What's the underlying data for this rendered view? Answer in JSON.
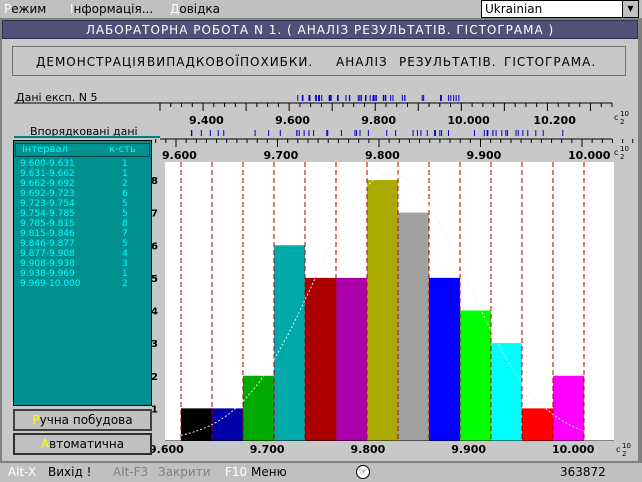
{
  "menubar": {
    "items": [
      {
        "hot": "Р",
        "rest": "ежим"
      },
      {
        "hot": "І",
        "rest": "нформація..."
      },
      {
        "hot": "Д",
        "rest": "овідка"
      }
    ],
    "language": "Ukrainian"
  },
  "title": "ЛАБОРАТОРНА РОБОТА N 1. ( АНАЛІЗ РЕЗУЛЬТАТІВ. ГІСТОГРАМА )",
  "toolbar": {
    "items": [
      "ДЕМОНСТРАЦІЯ",
      "ВИПАДКОВОЇ",
      "ПОХИБКИ.",
      "АНАЛІЗ",
      "РЕЗУЛЬТАТІВ.",
      "ГІСТОГРАМА."
    ]
  },
  "data_label": "Дані експ. N 5",
  "sorted_label": "Впорядковані дані",
  "top_axis": {
    "ticks": [
      "9.400",
      "9.600",
      "9.800",
      "10.000",
      "10.200"
    ],
    "unit": "с·10^2"
  },
  "mid_axis": {
    "ticks": [
      "9.600",
      "9.700",
      "9.800",
      "9.900",
      "10.000"
    ],
    "unit": "с·10^2"
  },
  "bottom_axis": {
    "ticks": [
      "9.600",
      "9.700",
      "9.800",
      "9.900",
      "10.000"
    ],
    "unit": "с·10^2"
  },
  "table": {
    "headers": [
      "інтервал",
      "к-сть"
    ],
    "rows": [
      {
        "interval": "9.600-9.631",
        "count": "1"
      },
      {
        "interval": "9.631-9.662",
        "count": "1"
      },
      {
        "interval": "9.662-9.692",
        "count": "2"
      },
      {
        "interval": "9.692-9.723",
        "count": "6"
      },
      {
        "interval": "9.723-9.754",
        "count": "5"
      },
      {
        "interval": "9.754-9.785",
        "count": "5"
      },
      {
        "interval": "9.785-9.815",
        "count": "8"
      },
      {
        "interval": "9.815-9.846",
        "count": "7"
      },
      {
        "interval": "9.846-9.877",
        "count": "5"
      },
      {
        "interval": "9.877-9.908",
        "count": "4"
      },
      {
        "interval": "9.908-9.938",
        "count": "3"
      },
      {
        "interval": "9.938-9.969",
        "count": "1"
      },
      {
        "interval": "9.969-10.000",
        "count": "2"
      }
    ]
  },
  "buttons": {
    "manual": {
      "hot": "Р",
      "rest": "учна побудова"
    },
    "auto": {
      "hot": "А",
      "rest": "втоматична"
    }
  },
  "chart_data": {
    "type": "bar",
    "categories": [
      "9.600-9.631",
      "9.631-9.662",
      "9.662-9.692",
      "9.692-9.723",
      "9.723-9.754",
      "9.754-9.785",
      "9.785-9.815",
      "9.815-9.846",
      "9.846-9.877",
      "9.877-9.908",
      "9.908-9.938",
      "9.938-9.969",
      "9.969-10.000"
    ],
    "values": [
      1,
      1,
      2,
      6,
      5,
      5,
      8,
      7,
      5,
      4,
      3,
      1,
      2
    ],
    "colors": [
      "#000000",
      "#0000aa",
      "#00aa00",
      "#00aaaa",
      "#aa0000",
      "#aa00aa",
      "#aaaa00",
      "#a0a0a0",
      "#0000ff",
      "#00ff00",
      "#00ffff",
      "#ff0000",
      "#ff00ff"
    ],
    "xlim": [
      9.6,
      10.0
    ],
    "ylim": [
      0,
      8
    ],
    "yticks": [
      "1",
      "2",
      "3",
      "4",
      "5",
      "6",
      "7",
      "8"
    ],
    "xticks": [
      "9.600",
      "9.700",
      "9.800",
      "9.900",
      "10.000"
    ],
    "grid": false,
    "normal_curve": true
  },
  "status": {
    "exit_key": "Alt-X",
    "exit_label": "Вихід !",
    "close_key": "Alt-F3",
    "close_label": "Закрити",
    "menu_key": "F10",
    "menu_label": "Меню",
    "memory": "363872"
  }
}
